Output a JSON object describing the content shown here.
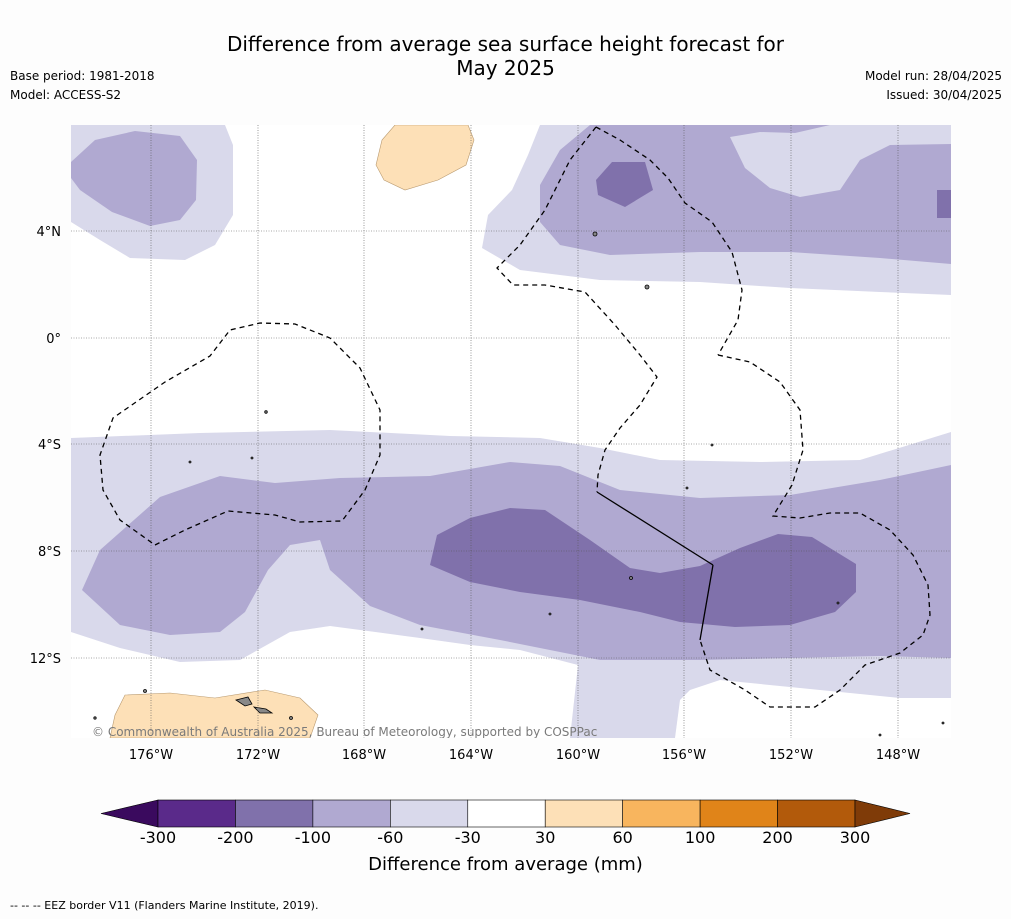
{
  "title_line1": "Difference from average sea surface height forecast for",
  "title_line2": "May 2025",
  "meta_left": {
    "base_period": "Base period: 1981-2018",
    "model": "Model: ACCESS-S2"
  },
  "meta_right": {
    "model_run": "Model run: 28/04/2025",
    "issued": "Issued: 30/04/2025"
  },
  "map": {
    "lat_labels": [
      "4°N",
      "0°",
      "4°S",
      "8°S",
      "12°S"
    ],
    "lon_labels": [
      "176°W",
      "172°W",
      "168°W",
      "164°W",
      "160°W",
      "156°W",
      "152°W",
      "148°W"
    ],
    "copyright": "© Commonwealth of Australia 2025, Bureau of Meteorology, supported by COSPPac"
  },
  "colorbar": {
    "ticks": [
      "-300",
      "-200",
      "-100",
      "-60",
      "-30",
      "30",
      "60",
      "100",
      "200",
      "300"
    ],
    "colors": [
      "#3a0a5e",
      "#5a2a8a",
      "#8071ab",
      "#b0a9d1",
      "#d9d9eb",
      "#ffffff",
      "#fde0b7",
      "#f8b55e",
      "#e08419",
      "#b25a0b",
      "#7f3b08"
    ],
    "title": "Difference from average (mm)"
  },
  "footnote": "--  --  -- EEZ border V11 (Flanders Marine Institute, 2019)."
}
